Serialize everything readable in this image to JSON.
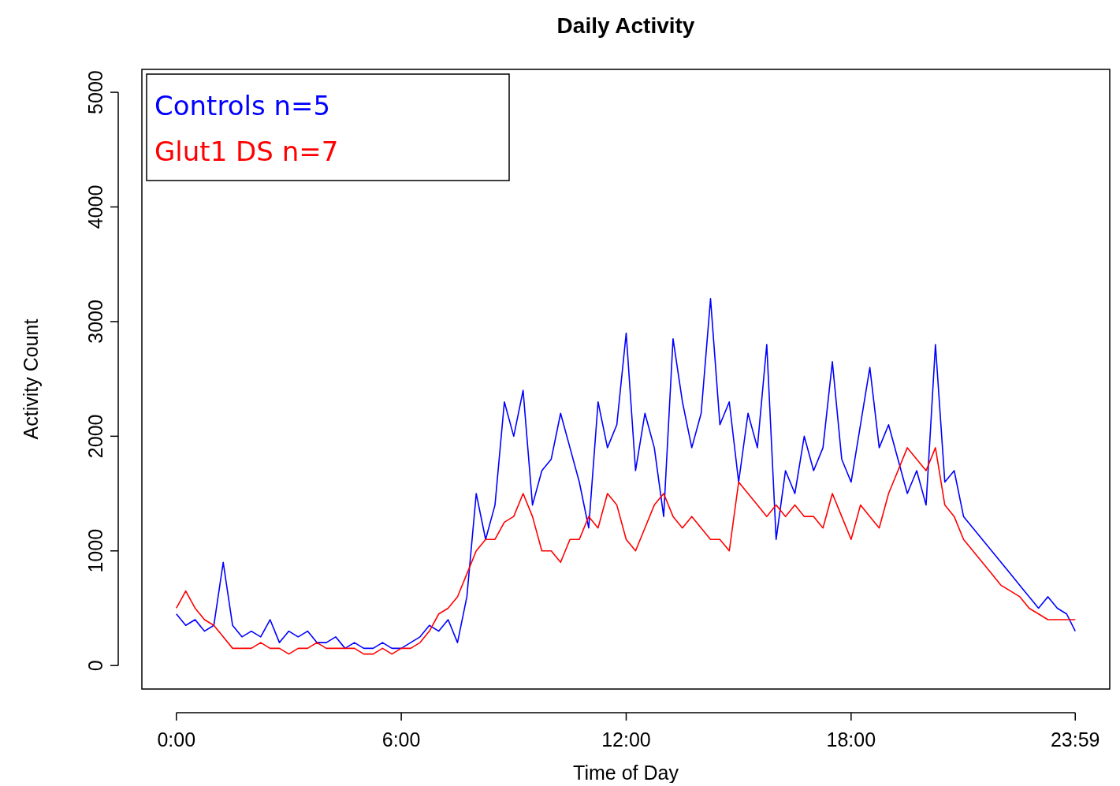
{
  "chart_data": {
    "type": "line",
    "title": "Daily Activity",
    "xlabel": "Time of Day",
    "ylabel": "Activity Count",
    "x": [
      0,
      0.25,
      0.5,
      0.75,
      1,
      1.25,
      1.5,
      1.75,
      2,
      2.25,
      2.5,
      2.75,
      3,
      3.25,
      3.5,
      3.75,
      4,
      4.25,
      4.5,
      4.75,
      5,
      5.25,
      5.5,
      5.75,
      6,
      6.25,
      6.5,
      6.75,
      7,
      7.25,
      7.5,
      7.75,
      8,
      8.25,
      8.5,
      8.75,
      9,
      9.25,
      9.5,
      9.75,
      10,
      10.25,
      10.5,
      10.75,
      11,
      11.25,
      11.5,
      11.75,
      12,
      12.25,
      12.5,
      12.75,
      13,
      13.25,
      13.5,
      13.75,
      14,
      14.25,
      14.5,
      14.75,
      15,
      15.25,
      15.5,
      15.75,
      16,
      16.25,
      16.5,
      16.75,
      17,
      17.25,
      17.5,
      17.75,
      18,
      18.25,
      18.5,
      18.75,
      19,
      19.25,
      19.5,
      19.75,
      20,
      20.25,
      20.5,
      20.75,
      21,
      21.25,
      21.5,
      21.75,
      22,
      22.25,
      22.5,
      22.75,
      23,
      23.25,
      23.5,
      23.75,
      23.98
    ],
    "series": [
      {
        "name": "Controls n=5",
        "color": "#0000ff",
        "values": [
          450,
          350,
          400,
          300,
          350,
          900,
          350,
          250,
          300,
          250,
          400,
          200,
          300,
          250,
          300,
          200,
          200,
          250,
          150,
          200,
          150,
          150,
          200,
          150,
          150,
          200,
          250,
          350,
          300,
          400,
          200,
          600,
          1500,
          1100,
          1400,
          2300,
          2000,
          2400,
          1400,
          1700,
          1800,
          2200,
          1900,
          1600,
          1200,
          2300,
          1900,
          2100,
          2900,
          1700,
          2200,
          1900,
          1300,
          2850,
          2300,
          1900,
          2200,
          3200,
          2100,
          2300,
          1600,
          2200,
          1900,
          2800,
          1100,
          1700,
          1500,
          2000,
          1700,
          1900,
          2650,
          1800,
          1600,
          2100,
          2600,
          1900,
          2100,
          1800,
          1500,
          1700,
          1400,
          2800,
          1600,
          1700,
          1300,
          1200,
          1100,
          1000,
          900,
          800,
          700,
          600,
          500,
          600,
          500,
          450,
          300
        ]
      },
      {
        "name": "Glut1 DS n=7",
        "color": "#ff0000",
        "values": [
          500,
          650,
          500,
          400,
          350,
          250,
          150,
          150,
          150,
          200,
          150,
          150,
          100,
          150,
          150,
          200,
          150,
          150,
          150,
          150,
          100,
          100,
          150,
          100,
          150,
          150,
          200,
          300,
          450,
          500,
          600,
          800,
          1000,
          1100,
          1100,
          1250,
          1300,
          1500,
          1300,
          1000,
          1000,
          900,
          1100,
          1100,
          1300,
          1200,
          1500,
          1400,
          1100,
          1000,
          1200,
          1400,
          1500,
          1300,
          1200,
          1300,
          1200,
          1100,
          1100,
          1000,
          1600,
          1500,
          1400,
          1300,
          1400,
          1300,
          1400,
          1300,
          1300,
          1200,
          1500,
          1300,
          1100,
          1400,
          1300,
          1200,
          1500,
          1700,
          1900,
          1800,
          1700,
          1900,
          1400,
          1300,
          1100,
          1000,
          900,
          800,
          700,
          650,
          600,
          500,
          450,
          400,
          400,
          400,
          400
        ]
      }
    ],
    "xlim": [
      -0.92,
      24.9
    ],
    "ylim": [
      -205,
      5200
    ],
    "xticks": [
      {
        "value": 0,
        "label": "0:00"
      },
      {
        "value": 6,
        "label": "6:00"
      },
      {
        "value": 12,
        "label": "12:00"
      },
      {
        "value": 18,
        "label": "18:00"
      },
      {
        "value": 23.98,
        "label": "23:59"
      }
    ],
    "yticks": [
      0,
      1000,
      2000,
      3000,
      4000,
      5000
    ],
    "grid": false,
    "legend": "top left",
    "marker": "none",
    "line_style": "solid"
  }
}
